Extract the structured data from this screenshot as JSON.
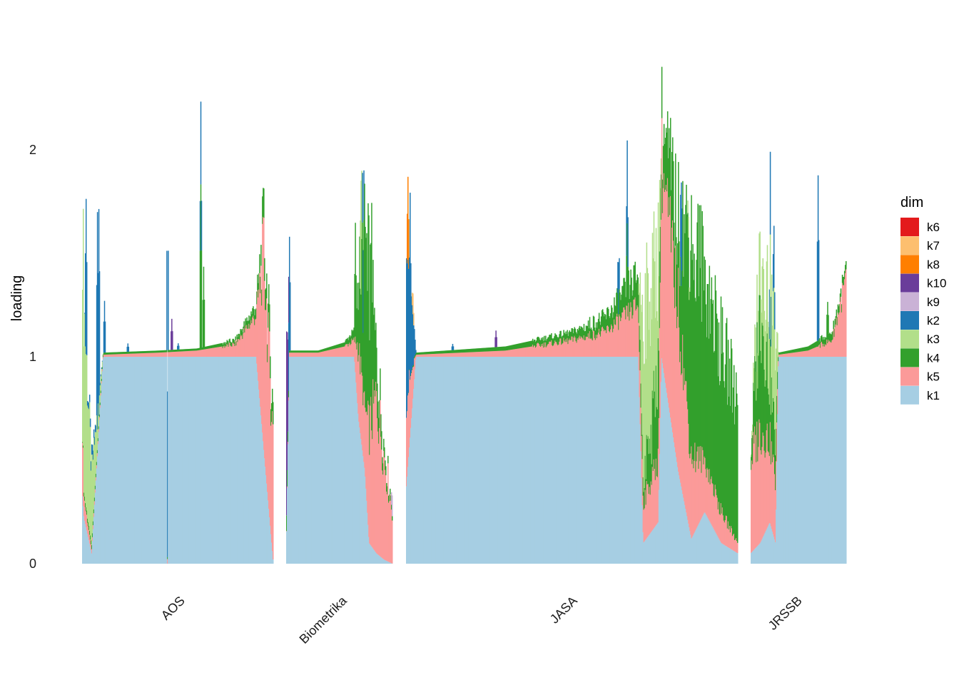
{
  "chart_data": {
    "type": "area",
    "subtype": "stacked structure plot (loadings per article, faceted by journal)",
    "title": "",
    "xlabel": "",
    "ylabel": "loading",
    "ylim": [
      0,
      2.7
    ],
    "yticks": [
      0,
      1,
      2
    ],
    "grid": false,
    "legend": {
      "title": "dim",
      "position": "right"
    },
    "series_keys": [
      "k6",
      "k7",
      "k8",
      "k10",
      "k9",
      "k2",
      "k3",
      "k4",
      "k5",
      "k1"
    ],
    "colors": {
      "k6": "#e31a1c",
      "k7": "#fdbf6f",
      "k8": "#ff7f00",
      "k10": "#6a3d9a",
      "k9": "#cab2d6",
      "k2": "#1f78b4",
      "k3": "#b2df8a",
      "k4": "#33a02c",
      "k5": "#fb9a99",
      "k1": "#a6cee3"
    },
    "groups": [
      {
        "label": "AOS",
        "n": 270,
        "knots": [
          {
            "t": 0.0,
            "k1": 0.35,
            "k5": 0.4,
            "k3": 1.0
          },
          {
            "t": 0.01,
            "k1": 0.22,
            "k5": 0.1,
            "k3": 0.9,
            "k4": 0.02
          },
          {
            "t": 0.05,
            "k1": 0.05,
            "k5": 0.02,
            "k3": 0.35,
            "k4": 0.02,
            "k2": 0.05
          },
          {
            "t": 0.11,
            "k1": 1.0,
            "k5": 0.01,
            "k4": 0.01
          },
          {
            "t": 0.4,
            "k1": 1.0,
            "k5": 0.02,
            "k4": 0.01
          },
          {
            "t": 0.6,
            "k1": 1.0,
            "k5": 0.03,
            "k4": 0.01
          },
          {
            "t": 0.8,
            "k1": 1.0,
            "k5": 0.06,
            "k4": 0.02
          },
          {
            "t": 0.91,
            "k1": 1.0,
            "k5": 0.2,
            "k4": 0.05
          },
          {
            "t": 0.95,
            "k1": 0.55,
            "k5": 0.95,
            "k4": 0.12
          },
          {
            "t": 1.0,
            "k1": 0.0,
            "k5": 0.6,
            "k4": 0.1
          }
        ],
        "spikes": [
          {
            "t": 0.02,
            "k2": 0.75
          },
          {
            "t": 0.08,
            "k2": 1.05,
            "k3": 0.1
          },
          {
            "t": 0.086,
            "k2": 1.0,
            "k3": 0.05
          },
          {
            "t": 0.115,
            "k2": 0.25
          },
          {
            "t": 0.445,
            "k2": 0.8,
            "k1": 0.0
          },
          {
            "t": 0.47,
            "k10": 0.15
          },
          {
            "t": 0.62,
            "k2": 0.4,
            "k4": 0.8
          },
          {
            "t": 0.635,
            "k4": 0.4
          },
          {
            "t": 0.24,
            "k2": 0.04
          },
          {
            "t": 0.5,
            "k2": 0.03
          }
        ]
      },
      {
        "label": "Biometrika",
        "n": 150,
        "knots": [
          {
            "t": 0.0,
            "k1": 0.05,
            "k10": 1.0,
            "k4": 0.1
          },
          {
            "t": 0.03,
            "k1": 1.0,
            "k5": 0.02,
            "k4": 0.01
          },
          {
            "t": 0.3,
            "k1": 1.0,
            "k5": 0.02,
            "k4": 0.01
          },
          {
            "t": 0.55,
            "k1": 1.0,
            "k5": 0.05,
            "k4": 0.02
          },
          {
            "t": 0.64,
            "k1": 1.0,
            "k5": 0.08,
            "k4": 0.05
          },
          {
            "t": 0.68,
            "k1": 0.7,
            "k5": 0.35,
            "k4": 0.35
          },
          {
            "t": 0.74,
            "k1": 0.45,
            "k5": 0.3,
            "k4": 0.85
          },
          {
            "t": 0.78,
            "k1": 0.1,
            "k5": 0.55,
            "k4": 0.75
          },
          {
            "t": 0.85,
            "k1": 0.05,
            "k5": 0.75,
            "k4": 0.2
          },
          {
            "t": 0.92,
            "k1": 0.02,
            "k5": 0.5,
            "k4": 0.05
          },
          {
            "t": 1.0,
            "k1": 0.0,
            "k5": 0.25,
            "k4": 0.02
          }
        ],
        "spikes": [
          {
            "t": 0.03,
            "k2": 0.55
          },
          {
            "t": 0.65,
            "k4": 0.55
          },
          {
            "t": 0.7,
            "k3": 0.55,
            "k4": 0.3
          },
          {
            "t": 0.72,
            "k2": 0.4,
            "k4": 0.35
          },
          {
            "t": 0.8,
            "k4": 1.1
          },
          {
            "t": 0.76,
            "k4": 0.6
          },
          {
            "t": 0.995,
            "k9": 0.1
          }
        ]
      },
      {
        "label": "JASA",
        "n": 460,
        "knots": [
          {
            "t": 0.0,
            "k1": 0.35,
            "k5": 0.45,
            "k2": 0.8
          },
          {
            "t": 0.03,
            "k1": 1.0,
            "k5": 0.01,
            "k4": 0.01
          },
          {
            "t": 0.3,
            "k1": 1.0,
            "k5": 0.03,
            "k4": 0.02
          },
          {
            "t": 0.5,
            "k1": 1.0,
            "k5": 0.08,
            "k4": 0.04
          },
          {
            "t": 0.6,
            "k1": 1.0,
            "k5": 0.12,
            "k4": 0.07
          },
          {
            "t": 0.7,
            "k1": 1.0,
            "k5": 0.25,
            "k4": 0.15
          },
          {
            "t": 0.715,
            "k1": 0.1,
            "k5": 0.2,
            "k3": 0.8,
            "k4": 0.1
          },
          {
            "t": 0.76,
            "k1": 0.2,
            "k5": 0.3,
            "k3": 0.55,
            "k4": 0.45
          },
          {
            "t": 0.77,
            "k1": 1.0,
            "k5": 0.95,
            "k4": 0.2
          },
          {
            "t": 0.82,
            "k1": 0.45,
            "k5": 0.8,
            "k4": 0.4
          },
          {
            "t": 0.86,
            "k1": 0.12,
            "k5": 0.4,
            "k4": 1.1
          },
          {
            "t": 0.9,
            "k1": 0.25,
            "k5": 0.25,
            "k4": 0.9
          },
          {
            "t": 0.95,
            "k1": 0.1,
            "k5": 0.15,
            "k4": 0.8
          },
          {
            "t": 1.0,
            "k1": 0.05,
            "k5": 0.05,
            "k4": 0.7
          }
        ],
        "spikes": [
          {
            "t": 0.006,
            "k8": 0.4
          },
          {
            "t": 0.012,
            "k2": 0.9
          },
          {
            "t": 0.02,
            "k7": 0.1
          },
          {
            "t": 0.14,
            "k2": 0.03
          },
          {
            "t": 0.27,
            "k10": 0.08
          },
          {
            "t": 0.64,
            "k2": 0.25
          },
          {
            "t": 0.667,
            "k2": 0.4,
            "k4": 0.4
          },
          {
            "t": 0.74,
            "k3": 0.7,
            "k4": 0.1
          },
          {
            "t": 0.85,
            "k4": 0.9,
            "k3": 0.1
          },
          {
            "t": 0.87,
            "k4": 0.7
          },
          {
            "t": 0.83,
            "k2": 0.5
          }
        ]
      },
      {
        "label": "JRSSB",
        "n": 130,
        "knots": [
          {
            "t": 0.0,
            "k1": 0.05,
            "k5": 0.45,
            "k4": 0.05
          },
          {
            "t": 0.1,
            "k1": 0.1,
            "k5": 0.55,
            "k3": 0.3,
            "k4": 0.6
          },
          {
            "t": 0.2,
            "k1": 0.2,
            "k5": 0.4,
            "k3": 0.4,
            "k4": 0.3
          },
          {
            "t": 0.26,
            "k1": 0.1,
            "k5": 0.3,
            "k3": 0.5,
            "k4": 0.2
          },
          {
            "t": 0.29,
            "k1": 1.0,
            "k5": 0.01,
            "k4": 0.01
          },
          {
            "t": 0.6,
            "k1": 1.0,
            "k5": 0.03,
            "k4": 0.02
          },
          {
            "t": 0.85,
            "k1": 1.0,
            "k5": 0.08,
            "k4": 0.04
          },
          {
            "t": 1.0,
            "k1": 1.0,
            "k5": 0.38,
            "k4": 0.04
          }
        ],
        "spikes": [
          {
            "t": 0.12,
            "k4": 0.6
          },
          {
            "t": 0.2,
            "k4": 0.4,
            "k2": 0.4
          },
          {
            "t": 0.24,
            "k2": 0.3
          },
          {
            "t": 0.7,
            "k2": 0.8
          },
          {
            "t": 0.8,
            "k4": 0.2
          }
        ]
      }
    ]
  }
}
